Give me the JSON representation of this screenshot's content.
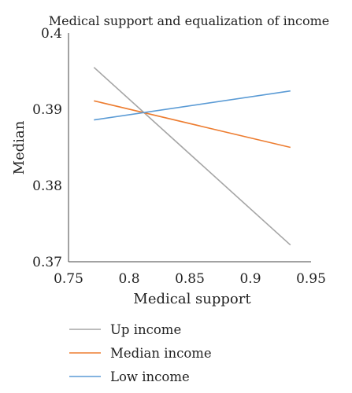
{
  "chart_data": {
    "type": "line",
    "title": "Medical support and equalization of income",
    "xlabel": "Medical support",
    "ylabel": "Median",
    "xlim": [
      0.75,
      0.95
    ],
    "ylim": [
      0.37,
      0.4
    ],
    "xticks": [
      "0.75",
      "0.8",
      "0.85",
      "0.9",
      "0.95"
    ],
    "yticks": [
      "0.37",
      "0.38",
      "0.39",
      "0.4"
    ],
    "grid": false,
    "legend_position": "bottom",
    "series": [
      {
        "name": "Up income",
        "color": "#a5a5a5",
        "x": [
          0.771,
          0.933
        ],
        "y": [
          0.3955,
          0.3722
        ]
      },
      {
        "name": "Median income",
        "color": "#ed7d31",
        "x": [
          0.771,
          0.933
        ],
        "y": [
          0.3911,
          0.385
        ]
      },
      {
        "name": "Low income",
        "color": "#5b9bd5",
        "x": [
          0.771,
          0.933
        ],
        "y": [
          0.3886,
          0.3924
        ]
      }
    ]
  }
}
